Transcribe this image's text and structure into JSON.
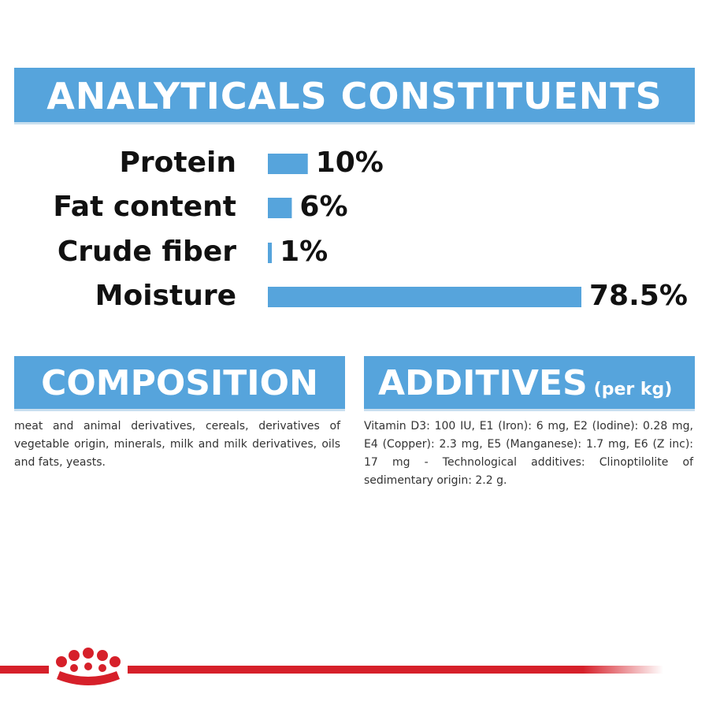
{
  "header": {
    "title": "ANALYTICALS CONSTITUENTS"
  },
  "chart_data": {
    "type": "bar",
    "categories": [
      "Protein",
      "Fat content",
      "Crude fiber",
      "Moisture"
    ],
    "values": [
      10,
      6,
      1,
      78.5
    ],
    "value_labels": [
      "10%",
      "6%",
      "1%",
      "78.5%"
    ],
    "color": "#56a4dc"
  },
  "composition": {
    "title": "COMPOSITION",
    "text": "meat and animal derivatives, cereals, derivatives of vegetable origin, minerals, milk and milk derivatives, oils and fats, yeasts."
  },
  "additives": {
    "title": "ADDITIVES",
    "unit": "(per kg)",
    "text": "Vitamin D3: 100 IU, E1 (Iron): 6 mg, E2 (Iodine): 0.28 mg, E4 (Copper): 2.3 mg, E5 (Manganese): 1.7 mg, E6 (Z inc): 17 mg - Technological additives: Clinoptilolite of sedimentary origin: 2.2 g."
  }
}
